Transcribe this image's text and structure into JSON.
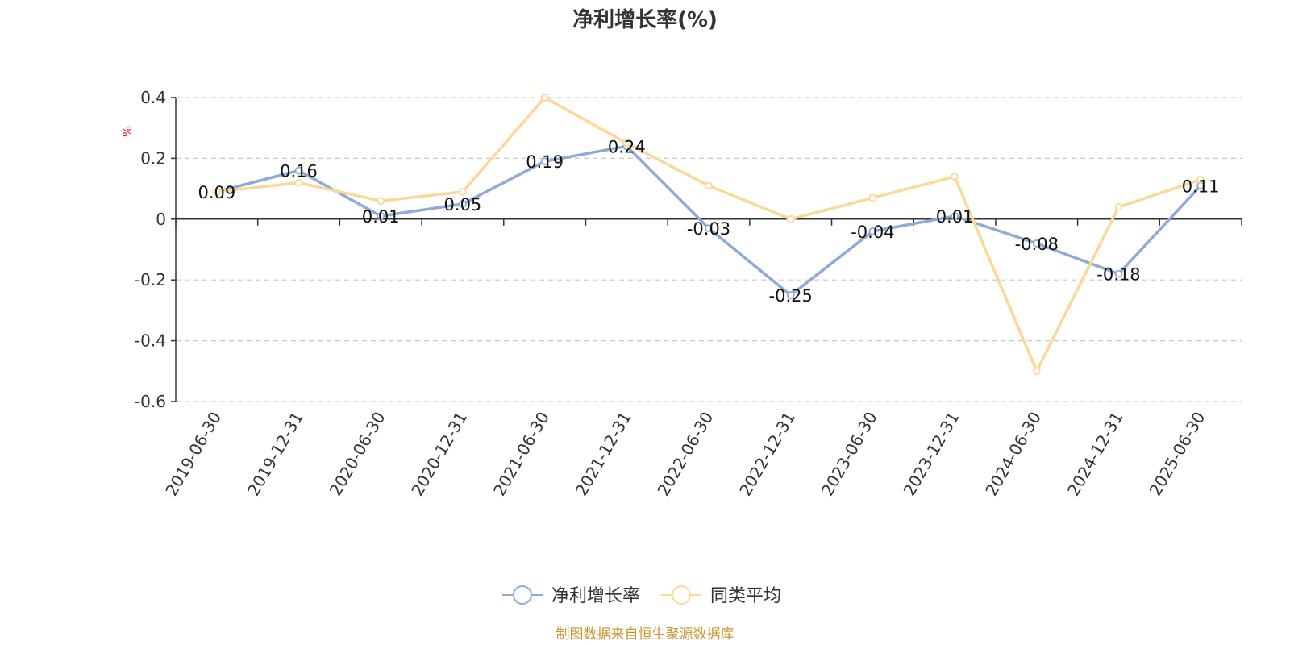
{
  "chart_data": {
    "type": "line",
    "title": "净利增长率(%)",
    "ylabel": "%",
    "ylim": [
      -0.6,
      0.4
    ],
    "yticks": [
      0.4,
      0.2,
      0,
      -0.2,
      -0.4,
      -0.6
    ],
    "ytick_labels": [
      "0.4",
      "0.2",
      "0",
      "-0.2",
      "-0.4",
      "-0.6"
    ],
    "grid": true,
    "legend_position": "bottom",
    "categories": [
      "2019-06-30",
      "2019-12-31",
      "2020-06-30",
      "2020-12-31",
      "2021-06-30",
      "2021-12-31",
      "2022-06-30",
      "2022-12-31",
      "2023-06-30",
      "2023-12-31",
      "2024-06-30",
      "2024-12-31",
      "2025-06-30"
    ],
    "series": [
      {
        "name": "净利增长率",
        "color": "#8eabd8",
        "values": [
          0.09,
          0.16,
          0.01,
          0.05,
          0.19,
          0.24,
          -0.03,
          -0.25,
          -0.04,
          0.01,
          -0.08,
          -0.18,
          0.11
        ],
        "labels": [
          "0.09",
          "0.16",
          "0.01",
          "0.05",
          "0.19",
          "0.24",
          "-0.03",
          "-0.25",
          "-0.04",
          "0.01",
          "-0.08",
          "-0.18",
          "0.11"
        ]
      },
      {
        "name": "同类平均",
        "color": "#fcd897",
        "values": [
          0.09,
          0.12,
          0.06,
          0.09,
          0.4,
          0.25,
          0.11,
          0.0,
          0.07,
          0.14,
          -0.5,
          0.04,
          0.13
        ]
      }
    ],
    "source": "制图数据来自恒生聚源数据库"
  }
}
